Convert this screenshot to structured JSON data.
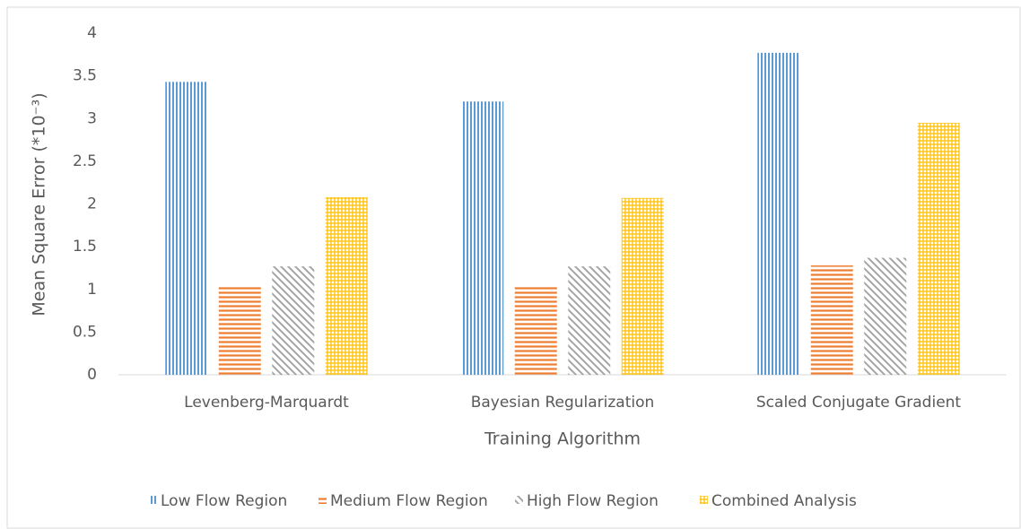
{
  "chart_data": {
    "type": "bar",
    "y_label": "Mean Square Error (*10⁻³)",
    "x_label": "Training Algorithm",
    "categories": [
      "Levenberg-Marquardt",
      "Bayesian Regularization",
      "Scaled Conjugate Gradient"
    ],
    "series": [
      {
        "name": "Low Flow Region",
        "color": "#5b9bd5",
        "pattern": "vertical",
        "values": [
          3.43,
          3.2,
          3.77
        ]
      },
      {
        "name": "Medium Flow Region",
        "color": "#ed7d31",
        "pattern": "horizontal",
        "values": [
          1.03,
          1.03,
          1.28
        ]
      },
      {
        "name": "High Flow Region",
        "color": "#a5a5a5",
        "pattern": "diagonal",
        "values": [
          1.27,
          1.27,
          1.37
        ]
      },
      {
        "name": "Combined Analysis",
        "color": "#ffc000",
        "pattern": "grid",
        "values": [
          2.08,
          2.07,
          2.95
        ]
      }
    ],
    "ylim": [
      0,
      4
    ],
    "yticks": [
      0,
      0.5,
      1,
      1.5,
      2,
      2.5,
      3,
      3.5,
      4
    ],
    "legend": "bottom"
  }
}
